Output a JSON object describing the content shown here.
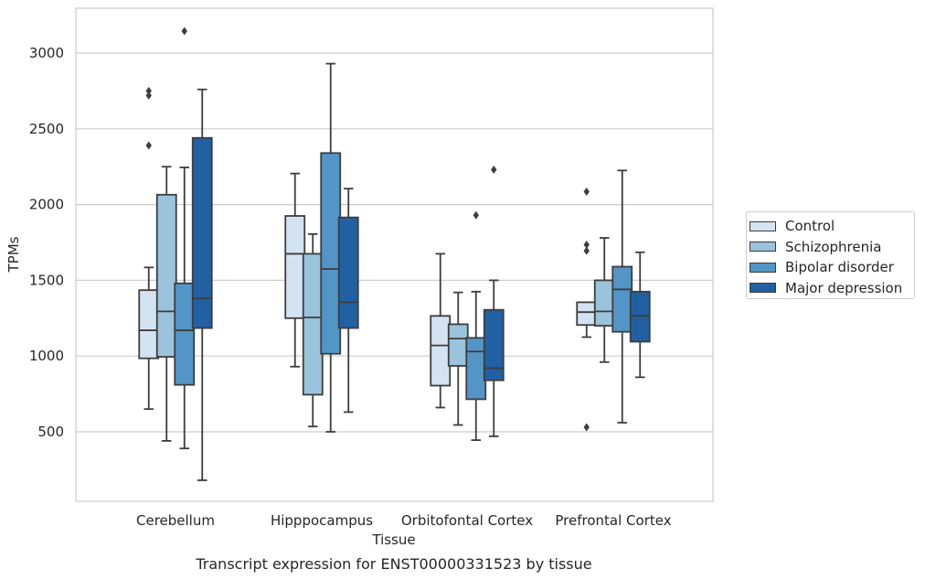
{
  "chart_data": {
    "type": "box",
    "title": "Transcript expression for ENST00000331523 by tissue",
    "xlabel": "Tissue",
    "ylabel": "TPMs",
    "ylim": [
      30,
      3300
    ],
    "yticks": [
      500,
      1000,
      1500,
      2000,
      2500,
      3000
    ],
    "grid": "horizontal",
    "legend_position": "right",
    "categories": [
      "Cerebellum",
      "Hipppocampus",
      "Orbitofontal Cortex",
      "Prefrontal Cortex"
    ],
    "series": [
      {
        "name": "Control",
        "color": "#d4e3f2",
        "boxes": [
          {
            "whisker_low": 650,
            "q1": 985,
            "median": 1170,
            "q3": 1435,
            "whisker_high": 1585,
            "outliers": [
              2390,
              2720,
              2750
            ]
          },
          {
            "whisker_low": 930,
            "q1": 1250,
            "median": 1675,
            "q3": 1925,
            "whisker_high": 2205,
            "outliers": []
          },
          {
            "whisker_low": 660,
            "q1": 805,
            "median": 1070,
            "q3": 1265,
            "whisker_high": 1675,
            "outliers": []
          },
          {
            "whisker_low": 1125,
            "q1": 1205,
            "median": 1290,
            "q3": 1355,
            "whisker_high": 1355,
            "outliers": [
              530,
              1695,
              1735,
              2085
            ]
          }
        ]
      },
      {
        "name": "Schizophrenia",
        "color": "#9ac3dc",
        "boxes": [
          {
            "whisker_low": 440,
            "q1": 995,
            "median": 1295,
            "q3": 2065,
            "whisker_high": 2250,
            "outliers": []
          },
          {
            "whisker_low": 535,
            "q1": 745,
            "median": 1255,
            "q3": 1675,
            "whisker_high": 1805,
            "outliers": []
          },
          {
            "whisker_low": 545,
            "q1": 935,
            "median": 1115,
            "q3": 1210,
            "whisker_high": 1420,
            "outliers": []
          },
          {
            "whisker_low": 960,
            "q1": 1200,
            "median": 1295,
            "q3": 1500,
            "whisker_high": 1780,
            "outliers": []
          }
        ]
      },
      {
        "name": "Bipolar disorder",
        "color": "#5295c6",
        "boxes": [
          {
            "whisker_low": 390,
            "q1": 810,
            "median": 1170,
            "q3": 1480,
            "whisker_high": 2245,
            "outliers": [
              3145
            ]
          },
          {
            "whisker_low": 500,
            "q1": 1015,
            "median": 1575,
            "q3": 2340,
            "whisker_high": 2930,
            "outliers": []
          },
          {
            "whisker_low": 445,
            "q1": 715,
            "median": 1030,
            "q3": 1120,
            "whisker_high": 1425,
            "outliers": [
              1930
            ]
          },
          {
            "whisker_low": 560,
            "q1": 1160,
            "median": 1440,
            "q3": 1590,
            "whisker_high": 2225,
            "outliers": []
          }
        ]
      },
      {
        "name": "Major depression",
        "color": "#2260a4",
        "boxes": [
          {
            "whisker_low": 180,
            "q1": 1185,
            "median": 1380,
            "q3": 2440,
            "whisker_high": 2760,
            "outliers": []
          },
          {
            "whisker_low": 630,
            "q1": 1185,
            "median": 1355,
            "q3": 1915,
            "whisker_high": 2105,
            "outliers": []
          },
          {
            "whisker_low": 470,
            "q1": 840,
            "median": 920,
            "q3": 1305,
            "whisker_high": 1500,
            "outliers": [
              2230
            ]
          },
          {
            "whisker_low": 860,
            "q1": 1095,
            "median": 1265,
            "q3": 1425,
            "whisker_high": 1685,
            "outliers": []
          }
        ]
      }
    ]
  }
}
